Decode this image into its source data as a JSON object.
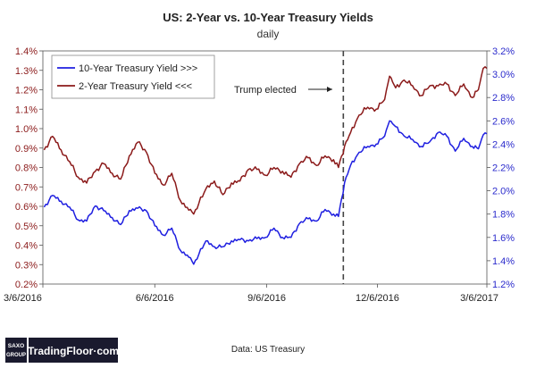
{
  "chart_data": {
    "type": "line",
    "title": "US: 2-Year vs. 10-Year Treasury Yields",
    "subtitle": "daily",
    "x_range": [
      "2016-03-06",
      "2017-03-06"
    ],
    "x_ticks": [
      "3/6/2016",
      "6/6/2016",
      "9/6/2016",
      "12/6/2016",
      "3/6/2017"
    ],
    "y_left": {
      "range": [
        0.2,
        1.4
      ],
      "ticks": [
        "0.2%",
        "0.3%",
        "0.4%",
        "0.5%",
        "0.6%",
        "0.7%",
        "0.8%",
        "0.9%",
        "1.0%",
        "1.1%",
        "1.2%",
        "1.3%",
        "1.4%"
      ],
      "color": "#8B1A1A"
    },
    "y_right": {
      "range": [
        1.2,
        3.2
      ],
      "ticks": [
        "1.2%",
        "1.4%",
        "1.6%",
        "1.8%",
        "2.0%",
        "2.2%",
        "2.4%",
        "2.6%",
        "2.8%",
        "3.0%",
        "3.2%"
      ],
      "color": "#2B2BCC"
    },
    "series": [
      {
        "name": "10-Year Treasury Yield >>>",
        "axis": "right",
        "color": "#1F1FE0",
        "points": [
          [
            "2016-03-07",
            1.86
          ],
          [
            "2016-03-14",
            1.96
          ],
          [
            "2016-03-21",
            1.91
          ],
          [
            "2016-03-28",
            1.86
          ],
          [
            "2016-04-04",
            1.75
          ],
          [
            "2016-04-11",
            1.74
          ],
          [
            "2016-04-18",
            1.87
          ],
          [
            "2016-04-25",
            1.83
          ],
          [
            "2016-05-02",
            1.77
          ],
          [
            "2016-05-09",
            1.71
          ],
          [
            "2016-05-16",
            1.83
          ],
          [
            "2016-05-23",
            1.85
          ],
          [
            "2016-05-30",
            1.83
          ],
          [
            "2016-06-06",
            1.7
          ],
          [
            "2016-06-13",
            1.62
          ],
          [
            "2016-06-20",
            1.68
          ],
          [
            "2016-06-27",
            1.49
          ],
          [
            "2016-07-04",
            1.43
          ],
          [
            "2016-07-08",
            1.37
          ],
          [
            "2016-07-18",
            1.57
          ],
          [
            "2016-07-25",
            1.52
          ],
          [
            "2016-08-01",
            1.52
          ],
          [
            "2016-08-08",
            1.57
          ],
          [
            "2016-08-15",
            1.58
          ],
          [
            "2016-08-22",
            1.57
          ],
          [
            "2016-08-29",
            1.59
          ],
          [
            "2016-09-05",
            1.6
          ],
          [
            "2016-09-12",
            1.68
          ],
          [
            "2016-09-19",
            1.6
          ],
          [
            "2016-09-26",
            1.6
          ],
          [
            "2016-10-03",
            1.72
          ],
          [
            "2016-10-10",
            1.76
          ],
          [
            "2016-10-17",
            1.74
          ],
          [
            "2016-10-24",
            1.84
          ],
          [
            "2016-10-31",
            1.8
          ],
          [
            "2016-11-04",
            1.78
          ],
          [
            "2016-11-09",
            2.07
          ],
          [
            "2016-11-14",
            2.22
          ],
          [
            "2016-11-21",
            2.33
          ],
          [
            "2016-11-28",
            2.38
          ],
          [
            "2016-12-05",
            2.4
          ],
          [
            "2016-12-12",
            2.47
          ],
          [
            "2016-12-16",
            2.6
          ],
          [
            "2016-12-21",
            2.55
          ],
          [
            "2016-12-28",
            2.47
          ],
          [
            "2017-01-04",
            2.44
          ],
          [
            "2017-01-11",
            2.38
          ],
          [
            "2017-01-18",
            2.42
          ],
          [
            "2017-01-25",
            2.5
          ],
          [
            "2017-02-01",
            2.47
          ],
          [
            "2017-02-08",
            2.34
          ],
          [
            "2017-02-15",
            2.45
          ],
          [
            "2017-02-22",
            2.38
          ],
          [
            "2017-02-27",
            2.36
          ],
          [
            "2017-03-03",
            2.48
          ],
          [
            "2017-03-06",
            2.49
          ]
        ]
      },
      {
        "name": "2-Year Treasury Yield <<<",
        "axis": "left",
        "color": "#8B1A1A",
        "points": [
          [
            "2016-03-07",
            0.89
          ],
          [
            "2016-03-14",
            0.96
          ],
          [
            "2016-03-21",
            0.89
          ],
          [
            "2016-03-28",
            0.83
          ],
          [
            "2016-04-04",
            0.75
          ],
          [
            "2016-04-11",
            0.72
          ],
          [
            "2016-04-18",
            0.78
          ],
          [
            "2016-04-25",
            0.82
          ],
          [
            "2016-05-02",
            0.77
          ],
          [
            "2016-05-09",
            0.74
          ],
          [
            "2016-05-16",
            0.86
          ],
          [
            "2016-05-23",
            0.93
          ],
          [
            "2016-05-30",
            0.88
          ],
          [
            "2016-06-06",
            0.77
          ],
          [
            "2016-06-13",
            0.71
          ],
          [
            "2016-06-20",
            0.77
          ],
          [
            "2016-06-27",
            0.63
          ],
          [
            "2016-07-04",
            0.58
          ],
          [
            "2016-07-08",
            0.56
          ],
          [
            "2016-07-18",
            0.69
          ],
          [
            "2016-07-25",
            0.73
          ],
          [
            "2016-08-01",
            0.66
          ],
          [
            "2016-08-08",
            0.72
          ],
          [
            "2016-08-15",
            0.73
          ],
          [
            "2016-08-22",
            0.79
          ],
          [
            "2016-08-29",
            0.79
          ],
          [
            "2016-09-05",
            0.76
          ],
          [
            "2016-09-12",
            0.8
          ],
          [
            "2016-09-19",
            0.78
          ],
          [
            "2016-09-26",
            0.75
          ],
          [
            "2016-10-03",
            0.82
          ],
          [
            "2016-10-10",
            0.85
          ],
          [
            "2016-10-17",
            0.81
          ],
          [
            "2016-10-24",
            0.86
          ],
          [
            "2016-10-31",
            0.84
          ],
          [
            "2016-11-04",
            0.8
          ],
          [
            "2016-11-09",
            0.91
          ],
          [
            "2016-11-14",
            0.98
          ],
          [
            "2016-11-21",
            1.07
          ],
          [
            "2016-11-28",
            1.11
          ],
          [
            "2016-12-05",
            1.1
          ],
          [
            "2016-12-12",
            1.15
          ],
          [
            "2016-12-16",
            1.27
          ],
          [
            "2016-12-21",
            1.21
          ],
          [
            "2016-12-28",
            1.25
          ],
          [
            "2017-01-04",
            1.22
          ],
          [
            "2017-01-11",
            1.17
          ],
          [
            "2017-01-18",
            1.22
          ],
          [
            "2017-01-25",
            1.22
          ],
          [
            "2017-02-01",
            1.23
          ],
          [
            "2017-02-08",
            1.17
          ],
          [
            "2017-02-15",
            1.23
          ],
          [
            "2017-02-22",
            1.16
          ],
          [
            "2017-02-27",
            1.2
          ],
          [
            "2017-03-03",
            1.31
          ],
          [
            "2017-03-06",
            1.31
          ]
        ]
      }
    ],
    "annotation": {
      "text": "Trump elected",
      "date": "2016-11-08"
    },
    "legend_position": "top-left",
    "grid": false
  },
  "footer": {
    "brand_top": "SAXO",
    "brand_bottom": "GROUP",
    "brand_name": "TradingFloor·com",
    "source": "Data: US Treasury"
  }
}
